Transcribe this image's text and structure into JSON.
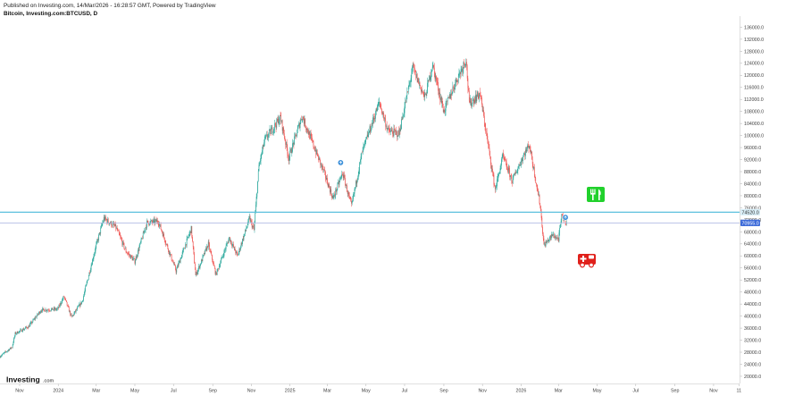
{
  "header": {
    "published": "Published on Investing.com, 14/Mar/2026 - 16:28:57 GMT, Powered by TradingView",
    "title": "Bitcoin, Investing.com:BTCUSD, D"
  },
  "logo": {
    "main": "Investing",
    "suffix": ".com"
  },
  "colors": {
    "up": "#26a69a",
    "down": "#ef5350",
    "hline_upper": "#5bc0de",
    "hline_lower": "#a7b4e0",
    "tag_upper": "#d9eef7",
    "tag_lower": "#3d6bd9",
    "marker": "#3a8fd9",
    "fork_icon": "#21d12c",
    "ambulance_icon": "#e0201b"
  },
  "icons": {
    "fork": "fork-knife-icon",
    "ambulance": "ambulance-icon",
    "marker": "info-marker-icon"
  },
  "chart_data": {
    "type": "candlestick",
    "y_ticks": [
      "136000.0",
      "132000.0",
      "128000.0",
      "124000.0",
      "120000.0",
      "116000.0",
      "112000.0",
      "108000.0",
      "104000.0",
      "100000.0",
      "96000.0",
      "92000.0",
      "88000.0",
      "84000.0",
      "80000.0",
      "76000.0",
      "72000.0",
      "68000.0",
      "64000.0",
      "60000.0",
      "56000.0",
      "52000.0",
      "48000.0",
      "44000.0",
      "40000.0",
      "36000.0",
      "32000.0",
      "28000.0",
      "24000.0",
      "20000.0"
    ],
    "ylim": [
      18500,
      138500
    ],
    "x_ticks": [
      "Nov",
      "2024",
      "Mar",
      "May",
      "Jul",
      "Sep",
      "Nov",
      "2025",
      "Mar",
      "May",
      "Jul",
      "Sep",
      "Nov",
      "2026",
      "Mar",
      "May",
      "Jul",
      "Sep",
      "Nov",
      "11"
    ],
    "xlim": [
      "2023-10-01",
      "2026-12-12"
    ],
    "x_tick_dates": [
      "2023-11-01",
      "2024-01-01",
      "2024-03-01",
      "2024-05-01",
      "2024-07-01",
      "2024-09-01",
      "2024-11-01",
      "2025-01-01",
      "2025-03-01",
      "2025-05-01",
      "2025-07-01",
      "2025-09-01",
      "2025-11-01",
      "2026-01-01",
      "2026-03-01",
      "2026-05-01",
      "2026-07-01",
      "2026-09-01",
      "2026-11-01",
      "2026-12-11"
    ],
    "price_path": [
      [
        "2023-10-01",
        26600
      ],
      [
        "2023-10-20",
        29700
      ],
      [
        "2023-10-25",
        34200
      ],
      [
        "2023-11-15",
        36500
      ],
      [
        "2023-12-05",
        42000
      ],
      [
        "2023-12-31",
        42300
      ],
      [
        "2024-01-10",
        46500
      ],
      [
        "2024-01-22",
        39600
      ],
      [
        "2024-02-08",
        45000
      ],
      [
        "2024-02-28",
        62000
      ],
      [
        "2024-03-13",
        72500
      ],
      [
        "2024-04-01",
        69500
      ],
      [
        "2024-04-17",
        61500
      ],
      [
        "2024-05-01",
        58200
      ],
      [
        "2024-05-20",
        71000
      ],
      [
        "2024-06-07",
        71500
      ],
      [
        "2024-07-05",
        55000
      ],
      [
        "2024-07-29",
        69000
      ],
      [
        "2024-08-05",
        53500
      ],
      [
        "2024-08-25",
        64000
      ],
      [
        "2024-09-06",
        53800
      ],
      [
        "2024-09-27",
        66000
      ],
      [
        "2024-10-10",
        60000
      ],
      [
        "2024-10-29",
        72500
      ],
      [
        "2024-11-05",
        68500
      ],
      [
        "2024-11-13",
        90000
      ],
      [
        "2024-11-22",
        98500
      ],
      [
        "2024-12-17",
        106000
      ],
      [
        "2024-12-30",
        92500
      ],
      [
        "2025-01-20",
        106500
      ],
      [
        "2025-02-01",
        100000
      ],
      [
        "2025-02-25",
        87000
      ],
      [
        "2025-03-10",
        79000
      ],
      [
        "2025-03-25",
        87500
      ],
      [
        "2025-04-08",
        76500
      ],
      [
        "2025-04-25",
        94500
      ],
      [
        "2025-05-22",
        111000
      ],
      [
        "2025-06-05",
        101500
      ],
      [
        "2025-06-22",
        100500
      ],
      [
        "2025-07-14",
        122500
      ],
      [
        "2025-08-02",
        112500
      ],
      [
        "2025-08-14",
        123500
      ],
      [
        "2025-09-01",
        108000
      ],
      [
        "2025-09-18",
        117000
      ],
      [
        "2025-10-06",
        125500
      ],
      [
        "2025-10-11",
        110500
      ],
      [
        "2025-10-28",
        114000
      ],
      [
        "2025-11-21",
        82000
      ],
      [
        "2025-12-03",
        93000
      ],
      [
        "2025-12-18",
        85000
      ],
      [
        "2026-01-05",
        93500
      ],
      [
        "2026-01-14",
        97000
      ],
      [
        "2026-01-31",
        77000
      ],
      [
        "2026-02-06",
        63500
      ],
      [
        "2026-02-20",
        67000
      ],
      [
        "2026-03-01",
        65500
      ],
      [
        "2026-03-06",
        73000
      ],
      [
        "2026-03-14",
        71300
      ]
    ],
    "horizontal_lines": [
      {
        "label": "74520.0",
        "value": 74520
      },
      {
        "label": "70955.0",
        "value": 70955
      }
    ],
    "markers": [
      {
        "date": "2025-03-22",
        "value": 91000
      },
      {
        "date": "2026-03-12",
        "value": 72800
      }
    ],
    "grid": false,
    "legend": "none"
  }
}
